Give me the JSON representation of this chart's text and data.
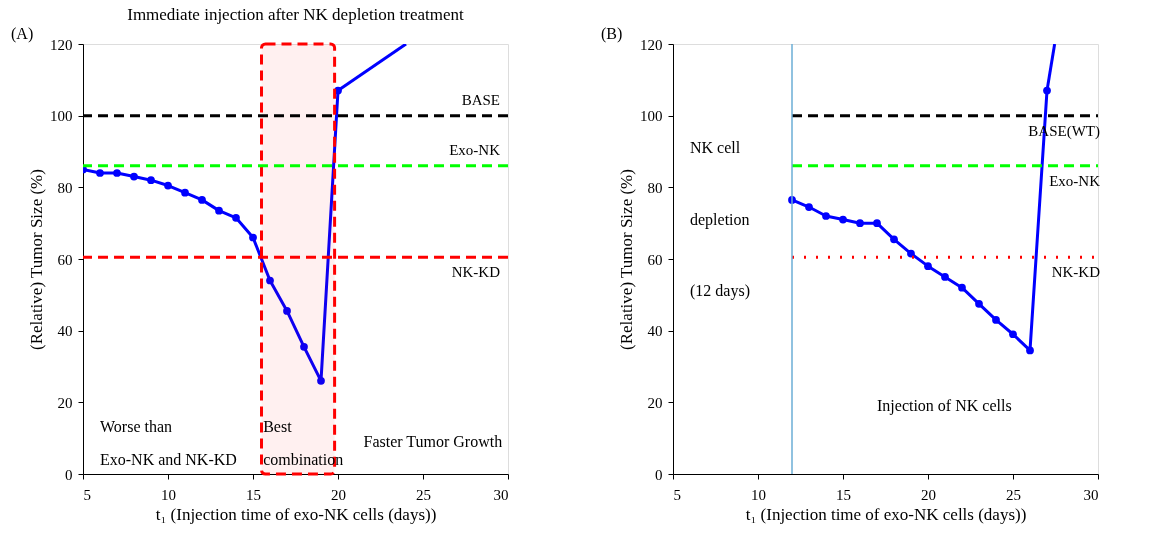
{
  "chart_data": [
    {
      "type": "line",
      "title": "Immediate injection after NK depletion treatment",
      "xlabel": "t₁ (Injection time of exo-NK cells (days))",
      "ylabel": "(Relative) Tumor Size (%)",
      "xlim": [
        5,
        30
      ],
      "xticks": [
        5,
        10,
        15,
        20,
        25,
        30
      ],
      "ylim": [
        0,
        120
      ],
      "yticks": [
        0,
        20,
        40,
        60,
        80,
        100,
        120
      ],
      "grid": false,
      "marker": "circle",
      "line_style": "solid",
      "series": [
        {
          "color": "#0000ff",
          "x": [
            5,
            6,
            7,
            8,
            9,
            10,
            11,
            12,
            13,
            14,
            15,
            16,
            17,
            18,
            19,
            20
          ],
          "values": [
            85,
            84,
            84,
            83,
            82,
            80.5,
            78.5,
            76.5,
            73.5,
            71.5,
            66,
            54,
            45.5,
            35.5,
            26,
            107
          ]
        },
        {
          "color": "#0000ff",
          "x": [
            20,
            24
          ],
          "values": [
            107,
            120
          ],
          "marker": "none"
        }
      ],
      "ref_lines": [
        {
          "axis": "y",
          "value": 100,
          "label": "BASE",
          "color": "#000000",
          "line_style": "dashed"
        },
        {
          "axis": "y",
          "value": 86,
          "label": "Exo-NK",
          "color": "#00ff00",
          "line_style": "dashed"
        },
        {
          "axis": "y",
          "value": 60.5,
          "label": "NK-KD",
          "color": "#ff0000",
          "line_style": "dashed"
        }
      ],
      "bands": [
        {
          "axis": "x",
          "from": 15.5,
          "to": 19.8,
          "color": "#ff0000"
        }
      ],
      "annotations": [
        "(A)",
        "Worse than",
        "Exo-NK and NK-KD",
        "Best",
        "combination",
        "Faster Tumor Growth"
      ]
    },
    {
      "type": "line",
      "xlabel": "t₁ (Injection time of exo-NK cells (days))",
      "ylabel": "(Relative) Tumor Size (%)",
      "xlim": [
        5,
        30
      ],
      "xticks": [
        5,
        10,
        15,
        20,
        25,
        30
      ],
      "ylim": [
        0,
        120
      ],
      "yticks": [
        0,
        20,
        40,
        60,
        80,
        100,
        120
      ],
      "grid": false,
      "marker": "circle",
      "line_style": "solid",
      "series": [
        {
          "color": "#0000ff",
          "x": [
            12,
            13,
            14,
            15,
            16,
            17,
            18,
            19,
            20,
            21,
            22,
            23,
            24,
            25,
            26,
            27
          ],
          "values": [
            76.5,
            74.5,
            72,
            71,
            70,
            70,
            65.5,
            61.5,
            58,
            55,
            52,
            47.5,
            43,
            39,
            34.5,
            107
          ]
        },
        {
          "color": "#0000ff",
          "x": [
            27,
            27.45
          ],
          "values": [
            107,
            120
          ],
          "marker": "none"
        },
        {
          "name": "BASE(WT)",
          "color": "#000000",
          "x": [
            12,
            30
          ],
          "values": [
            100,
            100
          ],
          "marker": "none",
          "line_style": "dashed"
        },
        {
          "name": "Exo-NK",
          "color": "#00ff00",
          "x": [
            12,
            30
          ],
          "values": [
            86,
            86
          ],
          "marker": "none",
          "line_style": "dashed"
        },
        {
          "name": "NK-KD",
          "color": "#ff0000",
          "x": [
            12,
            30
          ],
          "values": [
            60.5,
            60.5
          ],
          "marker": "none",
          "line_style": "dotted"
        }
      ],
      "ref_lines": [
        {
          "axis": "x",
          "value": 12,
          "color": "#6baed6",
          "line_style": "solid"
        }
      ],
      "annotations": [
        "(B)",
        "NK cell",
        "depletion",
        "(12 days)",
        "Injection of NK cells"
      ]
    }
  ]
}
